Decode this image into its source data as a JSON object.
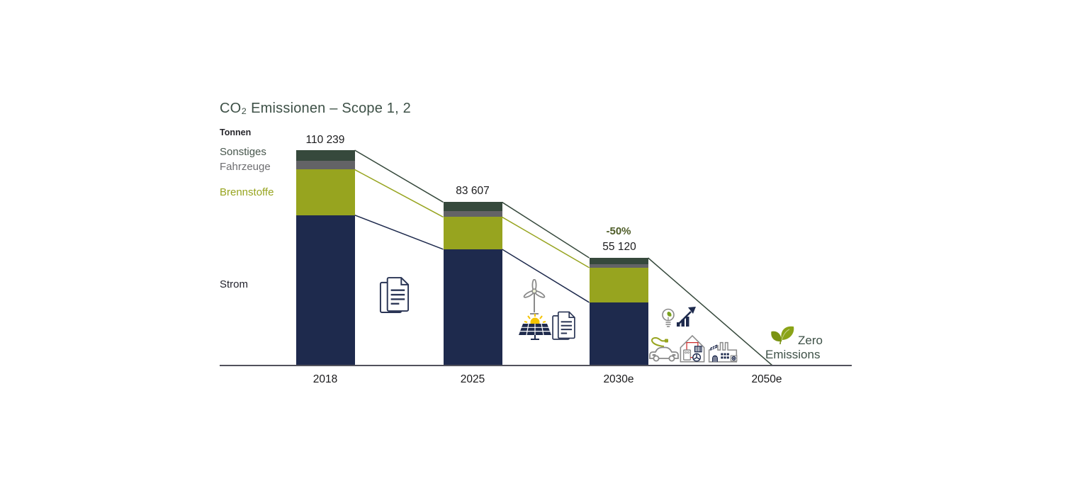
{
  "title": "CO₂ Emissionen – Scope 1, 2",
  "unit_label": "Tonnen",
  "side_labels": [
    "Sonstiges",
    "Fahrzeuge",
    "Brennstoffe",
    "Strom"
  ],
  "zero_emissions": {
    "line1": "Zero",
    "line2": "Emissions"
  },
  "colors": {
    "strom": "#1e2a4d",
    "brennstoffe": "#97a41f",
    "fahrzeuge": "#636366",
    "sonstiges": "#36493c",
    "title_text": "#3e5147",
    "axis": "#52525c",
    "annotation_green": "#4e5c28",
    "icon_gray": "#8a8a8a",
    "icon_navy": "#2a3555",
    "icon_green": "#97a41f",
    "sun_yellow": "#f5c400",
    "pipe_red": "#cc2a2a"
  },
  "chart_data": {
    "type": "bar",
    "stacked": true,
    "title": "CO₂ Emissionen – Scope 1, 2",
    "ylabel": "Tonnen",
    "xlabel": "",
    "grid": false,
    "legend_position": "left",
    "categories": [
      "2018",
      "2025",
      "2030e",
      "2050e"
    ],
    "series": [
      {
        "name": "Strom",
        "color": "#1e2a4d",
        "values": [
          77000,
          59500,
          32300,
          0
        ]
      },
      {
        "name": "Brennstoffe",
        "color": "#97a41f",
        "values": [
          23300,
          16500,
          17800,
          0
        ]
      },
      {
        "name": "Fahrzeuge",
        "color": "#636366",
        "values": [
          4400,
          3000,
          1820,
          0
        ]
      },
      {
        "name": "Sonstiges",
        "color": "#36493c",
        "values": [
          5539,
          4607,
          3200,
          0
        ]
      }
    ],
    "totals": [
      110239,
      83607,
      55120,
      0
    ],
    "total_labels": [
      "110 239",
      "83 607",
      "55 120",
      ""
    ],
    "annotation_2030": "-50%",
    "final_label": "Zero Emissions",
    "ylim": [
      0,
      110239
    ]
  }
}
